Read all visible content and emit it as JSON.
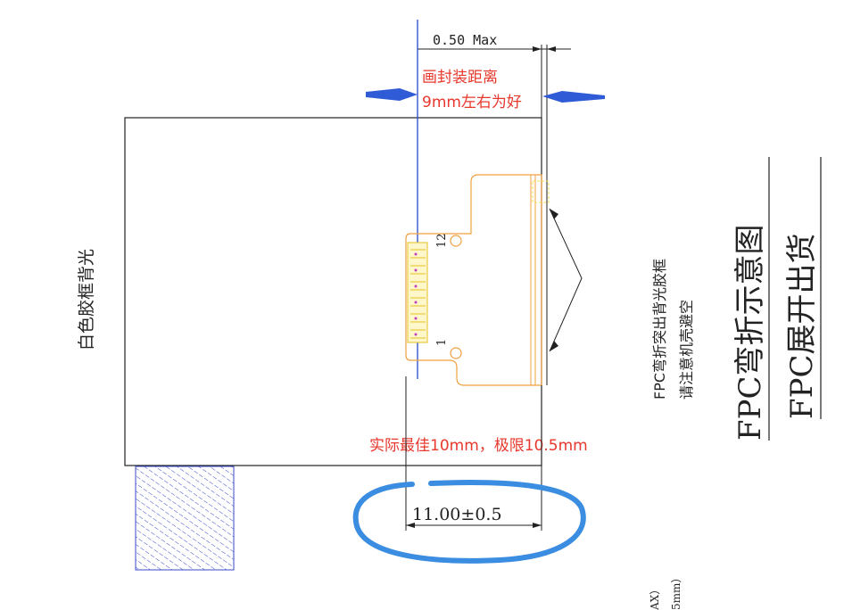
{
  "dimensions": {
    "max_gap": "0.50 Max",
    "fpc_length": "11.00±0.5"
  },
  "notes": {
    "draw_distance_line1": "画封装距离",
    "draw_distance_line2": "9mm左右为好",
    "best_fit": "实际最佳10mm，极限10.5mm"
  },
  "labels": {
    "backlight": "白色胶框背光",
    "pin_first": "1",
    "pin_last": "12",
    "fpc_note_line1": "FPC弯折突出背光胶框",
    "fpc_note_line2": "请注意机壳避空",
    "title_bend": "FPC弯折示意图",
    "title_flat": "FPC展开出货",
    "cut_text_1": "AX）",
    "cut_text_2": "5mm）"
  },
  "colors": {
    "outline": "#222222",
    "fpc": "#f0a040",
    "blue_line": "#3355cc",
    "annotation_red": "#e8372c",
    "circle": "#3a8de0",
    "arrow": "#2f5bd6",
    "hatch": "#3b48c8",
    "pins": "#e6c020"
  }
}
